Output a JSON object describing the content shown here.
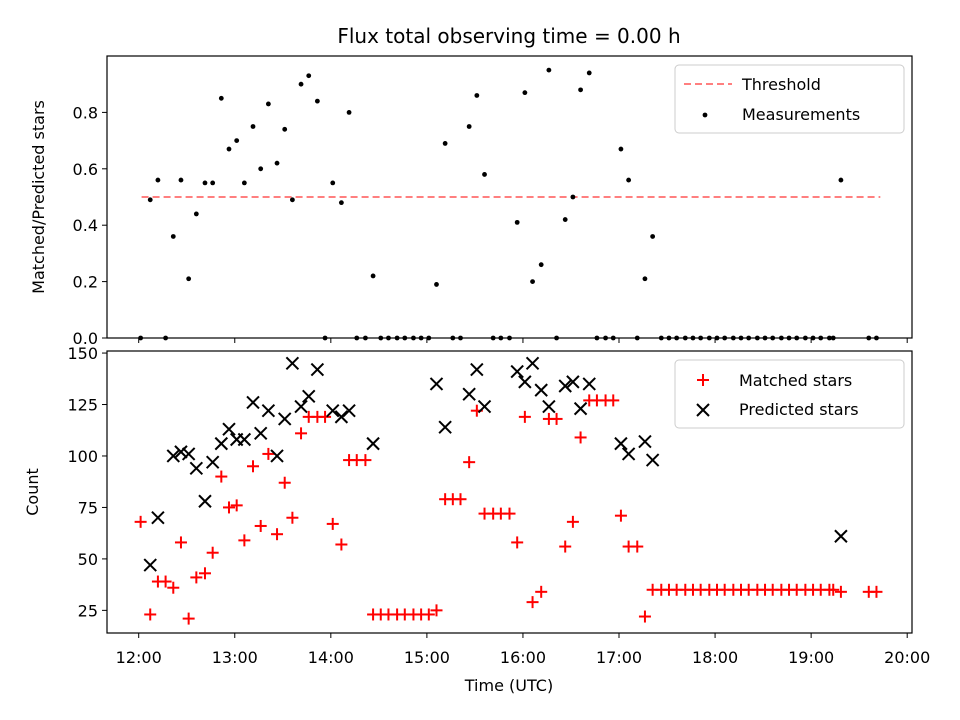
{
  "chart_data": [
    {
      "type": "scatter",
      "title": "Flux total observing time = 0.00 h",
      "xlabel": "",
      "ylabel": "Matched/Predicted stars",
      "xlim": [
        11.67,
        20.05
      ],
      "ylim": [
        0,
        1.0
      ],
      "yticks": [
        0.0,
        0.2,
        0.4,
        0.6,
        0.8
      ],
      "threshold": {
        "name": "Threshold",
        "y": 0.5,
        "x_start": 12.03,
        "x_end": 19.72,
        "color": "#ff7f7f"
      },
      "legend": {
        "position": "upper right",
        "entries": [
          "Threshold",
          "Measurements"
        ]
      },
      "series": [
        {
          "name": "Measurements",
          "color": "#000000",
          "points": [
            [
              12.02,
              0.0
            ],
            [
              12.12,
              0.49
            ],
            [
              12.2,
              0.56
            ],
            [
              12.28,
              0.0
            ],
            [
              12.36,
              0.36
            ],
            [
              12.44,
              0.56
            ],
            [
              12.52,
              0.21
            ],
            [
              12.6,
              0.44
            ],
            [
              12.69,
              0.55
            ],
            [
              12.77,
              0.55
            ],
            [
              12.86,
              0.85
            ],
            [
              12.94,
              0.67
            ],
            [
              13.02,
              0.7
            ],
            [
              13.1,
              0.55
            ],
            [
              13.19,
              0.75
            ],
            [
              13.27,
              0.6
            ],
            [
              13.35,
              0.83
            ],
            [
              13.44,
              0.62
            ],
            [
              13.52,
              0.74
            ],
            [
              13.6,
              0.49
            ],
            [
              13.69,
              0.9
            ],
            [
              13.77,
              0.93
            ],
            [
              13.86,
              0.84
            ],
            [
              13.94,
              0.0
            ],
            [
              14.02,
              0.55
            ],
            [
              14.11,
              0.48
            ],
            [
              14.19,
              0.8
            ],
            [
              14.27,
              0.0
            ],
            [
              14.36,
              0.0
            ],
            [
              14.44,
              0.22
            ],
            [
              14.52,
              0.0
            ],
            [
              14.6,
              0.0
            ],
            [
              14.69,
              0.0
            ],
            [
              14.77,
              0.0
            ],
            [
              14.86,
              0.0
            ],
            [
              14.94,
              0.0
            ],
            [
              15.02,
              0.0
            ],
            [
              15.1,
              0.19
            ],
            [
              15.19,
              0.69
            ],
            [
              15.27,
              0.0
            ],
            [
              15.35,
              0.0
            ],
            [
              15.44,
              0.75
            ],
            [
              15.52,
              0.86
            ],
            [
              15.6,
              0.58
            ],
            [
              15.69,
              0.0
            ],
            [
              15.77,
              0.0
            ],
            [
              15.86,
              0.0
            ],
            [
              15.94,
              0.41
            ],
            [
              16.02,
              0.87
            ],
            [
              16.1,
              0.2
            ],
            [
              16.19,
              0.26
            ],
            [
              16.27,
              0.95
            ],
            [
              16.35,
              0.0
            ],
            [
              16.44,
              0.42
            ],
            [
              16.52,
              0.5
            ],
            [
              16.6,
              0.88
            ],
            [
              16.69,
              0.94
            ],
            [
              16.77,
              0.0
            ],
            [
              16.86,
              0.0
            ],
            [
              16.94,
              0.0
            ],
            [
              17.02,
              0.67
            ],
            [
              17.1,
              0.56
            ],
            [
              17.19,
              0.0
            ],
            [
              17.27,
              0.21
            ],
            [
              17.35,
              0.36
            ],
            [
              17.44,
              0.0
            ],
            [
              17.52,
              0.0
            ],
            [
              17.6,
              0.0
            ],
            [
              17.69,
              0.0
            ],
            [
              17.77,
              0.0
            ],
            [
              17.85,
              0.0
            ],
            [
              17.94,
              0.0
            ],
            [
              18.02,
              0.0
            ],
            [
              18.1,
              0.0
            ],
            [
              18.19,
              0.0
            ],
            [
              18.27,
              0.0
            ],
            [
              18.35,
              0.0
            ],
            [
              18.44,
              0.0
            ],
            [
              18.52,
              0.0
            ],
            [
              18.6,
              0.0
            ],
            [
              18.69,
              0.0
            ],
            [
              18.77,
              0.0
            ],
            [
              18.85,
              0.0
            ],
            [
              18.94,
              0.0
            ],
            [
              19.02,
              0.0
            ],
            [
              19.1,
              0.0
            ],
            [
              19.19,
              0.0
            ],
            [
              19.23,
              0.0
            ],
            [
              19.31,
              0.56
            ],
            [
              19.6,
              0.0
            ],
            [
              19.68,
              0.0
            ]
          ]
        }
      ]
    },
    {
      "type": "scatter",
      "title": "",
      "xlabel": "Time (UTC)",
      "ylabel": "Count",
      "xlim": [
        11.67,
        20.05
      ],
      "ylim": [
        14,
        151
      ],
      "yticks": [
        25,
        50,
        75,
        100,
        125,
        150
      ],
      "xticks": [
        12,
        13,
        14,
        15,
        16,
        17,
        18,
        19,
        20
      ],
      "xtick_labels": [
        "12:00",
        "13:00",
        "14:00",
        "15:00",
        "16:00",
        "17:00",
        "18:00",
        "19:00",
        "20:00"
      ],
      "legend": {
        "position": "upper right",
        "entries": [
          "Matched stars",
          "Predicted stars"
        ]
      },
      "series": [
        {
          "name": "Matched stars",
          "marker": "plus",
          "color": "#ff0000",
          "points": [
            [
              12.02,
              68
            ],
            [
              12.12,
              23
            ],
            [
              12.2,
              39
            ],
            [
              12.28,
              39
            ],
            [
              12.36,
              36
            ],
            [
              12.44,
              58
            ],
            [
              12.52,
              21
            ],
            [
              12.6,
              41
            ],
            [
              12.69,
              43
            ],
            [
              12.77,
              53
            ],
            [
              12.86,
              90
            ],
            [
              12.94,
              75
            ],
            [
              13.02,
              76
            ],
            [
              13.1,
              59
            ],
            [
              13.19,
              95
            ],
            [
              13.27,
              66
            ],
            [
              13.35,
              101
            ],
            [
              13.44,
              62
            ],
            [
              13.52,
              87
            ],
            [
              13.6,
              70
            ],
            [
              13.69,
              111
            ],
            [
              13.77,
              119
            ],
            [
              13.86,
              119
            ],
            [
              13.94,
              119
            ],
            [
              14.02,
              67
            ],
            [
              14.11,
              57
            ],
            [
              14.19,
              98
            ],
            [
              14.27,
              98
            ],
            [
              14.36,
              98
            ],
            [
              14.44,
              23
            ],
            [
              14.52,
              23
            ],
            [
              14.6,
              23
            ],
            [
              14.69,
              23
            ],
            [
              14.77,
              23
            ],
            [
              14.86,
              23
            ],
            [
              14.94,
              23
            ],
            [
              15.02,
              23
            ],
            [
              15.1,
              25
            ],
            [
              15.19,
              79
            ],
            [
              15.27,
              79
            ],
            [
              15.35,
              79
            ],
            [
              15.44,
              97
            ],
            [
              15.52,
              122
            ],
            [
              15.6,
              72
            ],
            [
              15.69,
              72
            ],
            [
              15.77,
              72
            ],
            [
              15.86,
              72
            ],
            [
              15.94,
              58
            ],
            [
              16.02,
              119
            ],
            [
              16.1,
              29
            ],
            [
              16.19,
              34
            ],
            [
              16.27,
              118
            ],
            [
              16.35,
              118
            ],
            [
              16.44,
              56
            ],
            [
              16.52,
              68
            ],
            [
              16.6,
              109
            ],
            [
              16.69,
              127
            ],
            [
              16.77,
              127
            ],
            [
              16.86,
              127
            ],
            [
              16.94,
              127
            ],
            [
              17.02,
              71
            ],
            [
              17.1,
              56
            ],
            [
              17.19,
              56
            ],
            [
              17.27,
              22
            ],
            [
              17.35,
              35
            ],
            [
              17.44,
              35
            ],
            [
              17.52,
              35
            ],
            [
              17.6,
              35
            ],
            [
              17.69,
              35
            ],
            [
              17.77,
              35
            ],
            [
              17.85,
              35
            ],
            [
              17.94,
              35
            ],
            [
              18.02,
              35
            ],
            [
              18.1,
              35
            ],
            [
              18.19,
              35
            ],
            [
              18.27,
              35
            ],
            [
              18.35,
              35
            ],
            [
              18.44,
              35
            ],
            [
              18.52,
              35
            ],
            [
              18.6,
              35
            ],
            [
              18.69,
              35
            ],
            [
              18.77,
              35
            ],
            [
              18.85,
              35
            ],
            [
              18.94,
              35
            ],
            [
              19.02,
              35
            ],
            [
              19.1,
              35
            ],
            [
              19.19,
              35
            ],
            [
              19.23,
              35
            ],
            [
              19.31,
              34
            ],
            [
              19.6,
              34
            ],
            [
              19.68,
              34
            ]
          ]
        },
        {
          "name": "Predicted stars",
          "marker": "x",
          "color": "#000000",
          "points": [
            [
              12.12,
              47
            ],
            [
              12.2,
              70
            ],
            [
              12.36,
              100
            ],
            [
              12.44,
              102
            ],
            [
              12.52,
              101
            ],
            [
              12.6,
              94
            ],
            [
              12.69,
              78
            ],
            [
              12.77,
              97
            ],
            [
              12.86,
              106
            ],
            [
              12.94,
              113
            ],
            [
              13.02,
              108
            ],
            [
              13.1,
              108
            ],
            [
              13.19,
              126
            ],
            [
              13.27,
              111
            ],
            [
              13.35,
              122
            ],
            [
              13.44,
              100
            ],
            [
              13.52,
              118
            ],
            [
              13.6,
              145
            ],
            [
              13.69,
              124
            ],
            [
              13.77,
              129
            ],
            [
              13.86,
              142
            ],
            [
              14.02,
              122
            ],
            [
              14.11,
              119
            ],
            [
              14.19,
              122
            ],
            [
              14.44,
              106
            ],
            [
              15.1,
              135
            ],
            [
              15.19,
              114
            ],
            [
              15.44,
              130
            ],
            [
              15.52,
              142
            ],
            [
              15.6,
              124
            ],
            [
              15.94,
              141
            ],
            [
              16.02,
              136
            ],
            [
              16.1,
              145
            ],
            [
              16.19,
              132
            ],
            [
              16.27,
              124
            ],
            [
              16.44,
              134
            ],
            [
              16.52,
              136
            ],
            [
              16.6,
              123
            ],
            [
              16.69,
              135
            ],
            [
              17.02,
              106
            ],
            [
              17.1,
              101
            ],
            [
              17.27,
              107
            ],
            [
              17.35,
              98
            ],
            [
              19.31,
              61
            ]
          ]
        }
      ]
    }
  ]
}
